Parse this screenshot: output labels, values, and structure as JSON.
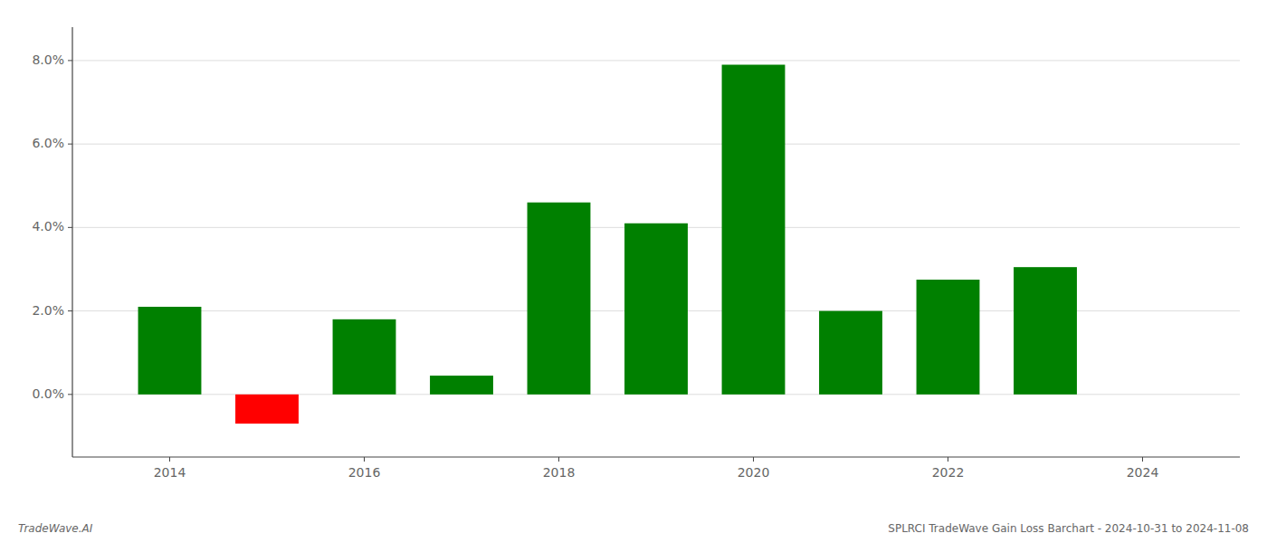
{
  "chart_data": {
    "type": "bar",
    "title": "SPLRCI TradeWave Gain Loss Barchart - 2024-10-31 to 2024-11-08",
    "annotations": [
      "TradeWave.AI"
    ],
    "x": [
      2014,
      2015,
      2016,
      2017,
      2018,
      2019,
      2020,
      2021,
      2022,
      2023
    ],
    "values": [
      0.021,
      -0.007,
      0.018,
      0.0045,
      0.046,
      0.041,
      0.079,
      0.02,
      0.0275,
      0.0305
    ],
    "colors": [
      "#008000",
      "#ff0000",
      "#008000",
      "#008000",
      "#008000",
      "#008000",
      "#008000",
      "#008000",
      "#008000",
      "#008000"
    ],
    "xlim": [
      2013.0,
      2025.0
    ],
    "xticks": [
      2014,
      2016,
      2018,
      2020,
      2022,
      2024
    ],
    "ylim": [
      -0.015,
      0.088
    ],
    "yticks": [
      {
        "value": 0.0,
        "label": "0.0%"
      },
      {
        "value": 0.02,
        "label": "2.0%"
      },
      {
        "value": 0.04,
        "label": "4.0%"
      },
      {
        "value": 0.06,
        "label": "6.0%"
      },
      {
        "value": 0.08,
        "label": "8.0%"
      }
    ],
    "grid": true
  }
}
